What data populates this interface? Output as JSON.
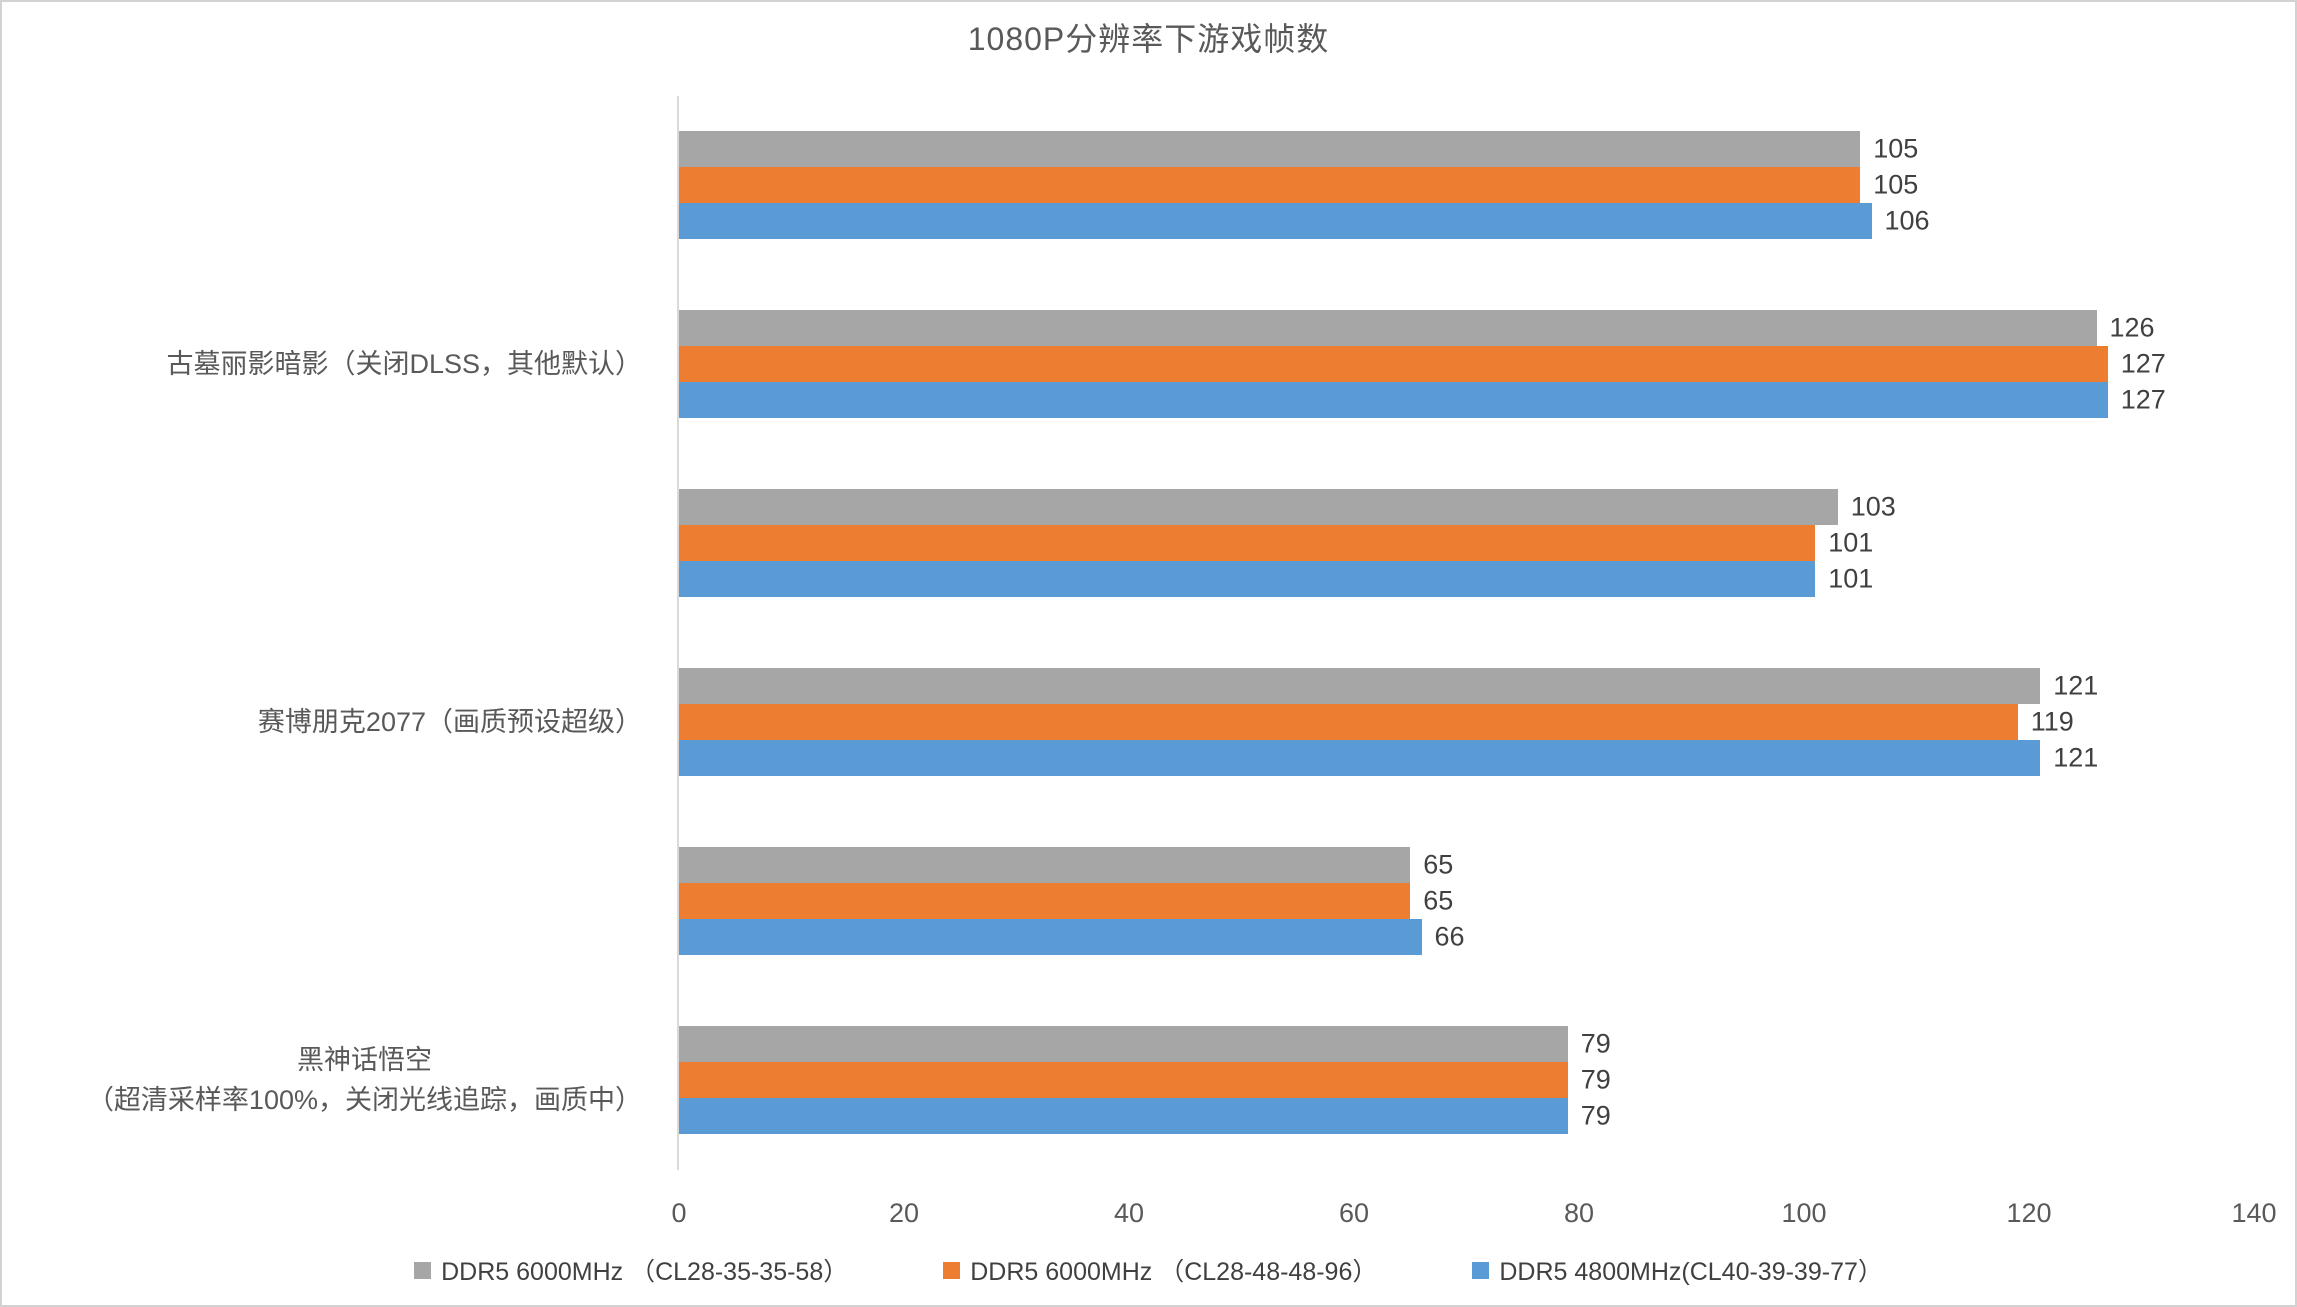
{
  "chart_data": {
    "type": "bar",
    "orientation": "horizontal",
    "title": "1080P分辨率下游戏帧数",
    "categories": [
      "",
      "古墓丽影暗影（关闭DLSS，其他默认）",
      "",
      "赛博朋克2077（画质预设超级）",
      "",
      "黑神话悟空\n（超清采样率100%，关闭光线追踪，画质中）"
    ],
    "series": [
      {
        "name": "DDR5 6000MHz （CL28-35-35-58）",
        "color": "#A6A6A6",
        "values": [
          105,
          126,
          103,
          121,
          65,
          79
        ]
      },
      {
        "name": "DDR5 6000MHz （CL28-48-48-96）",
        "color": "#ED7D31",
        "values": [
          105,
          127,
          101,
          119,
          65,
          79
        ]
      },
      {
        "name": "DDR5 4800MHz(CL40-39-39-77）",
        "color": "#5B9BD5",
        "values": [
          106,
          127,
          101,
          121,
          66,
          79
        ]
      }
    ],
    "value_labels": [
      [
        105,
        126,
        103,
        121,
        65,
        79
      ],
      [
        105,
        127,
        101,
        119,
        65,
        79
      ],
      [
        106,
        127,
        101,
        121,
        66,
        79
      ]
    ],
    "xlim": [
      0,
      140
    ],
    "xticks": [
      0,
      20,
      40,
      60,
      80,
      100,
      120,
      140
    ],
    "legend_position": "bottom",
    "grid": false,
    "colors": {
      "axis_line": "#D9D9D9",
      "axis_text": "#595959",
      "title_text": "#595959",
      "value_text": "#404040",
      "series_gray": "#A6A6A6",
      "series_orange": "#ED7D31",
      "series_blue": "#5B9BD5"
    }
  }
}
